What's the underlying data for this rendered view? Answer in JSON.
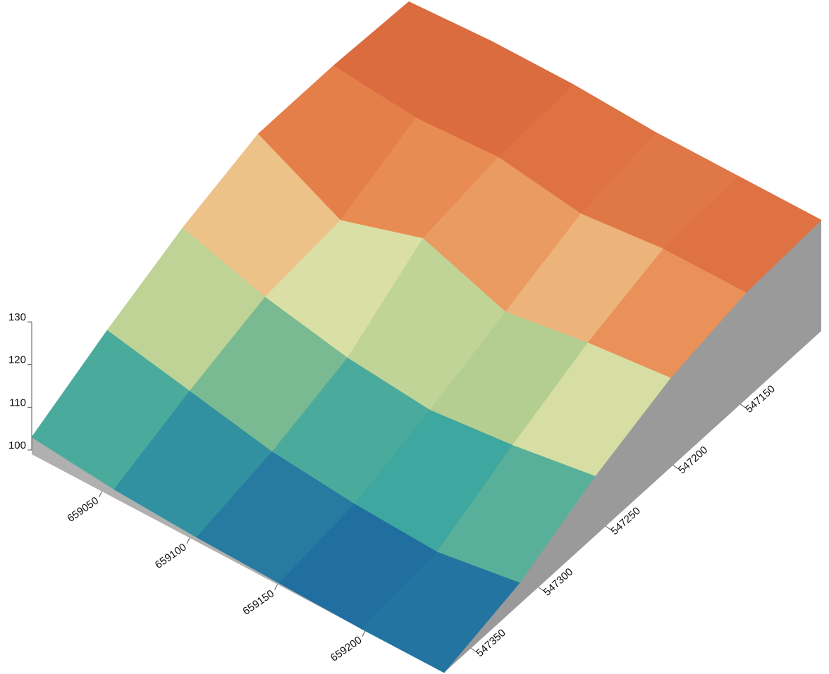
{
  "chart_data": {
    "type": "surface",
    "x": [
      659010,
      659057,
      659104,
      659151,
      659198,
      659245
    ],
    "y": [
      547370,
      547314,
      547258,
      547202,
      547146,
      547090
    ],
    "z": [
      [
        103,
        101,
        100,
        99.5,
        99,
        99
      ],
      [
        112,
        108,
        104,
        102,
        101,
        104
      ],
      [
        120,
        114,
        110,
        108,
        110,
        113
      ],
      [
        126,
        116,
        122,
        115,
        118,
        120
      ],
      [
        126,
        124,
        125,
        122,
        124,
        124
      ],
      [
        125,
        126,
        126,
        125,
        125,
        125
      ]
    ],
    "xlim": [
      659010,
      659245
    ],
    "ylim": [
      547370,
      547090
    ],
    "zlim": [
      99,
      132
    ],
    "xticks": [
      659050,
      659100,
      659150,
      659200
    ],
    "yticks": [
      547150,
      547200,
      547250,
      547300,
      547350
    ],
    "zticks": [
      100,
      110,
      120,
      130
    ],
    "colormap": [
      {
        "value": 99,
        "color": "#1a5fa0"
      },
      {
        "value": 105,
        "color": "#3aa6a0"
      },
      {
        "value": 112,
        "color": "#a8c98a"
      },
      {
        "value": 117,
        "color": "#f0e9b0"
      },
      {
        "value": 122,
        "color": "#e8874f"
      },
      {
        "value": 130,
        "color": "#c8452a"
      }
    ],
    "wall_color": "#9a9a9a"
  }
}
